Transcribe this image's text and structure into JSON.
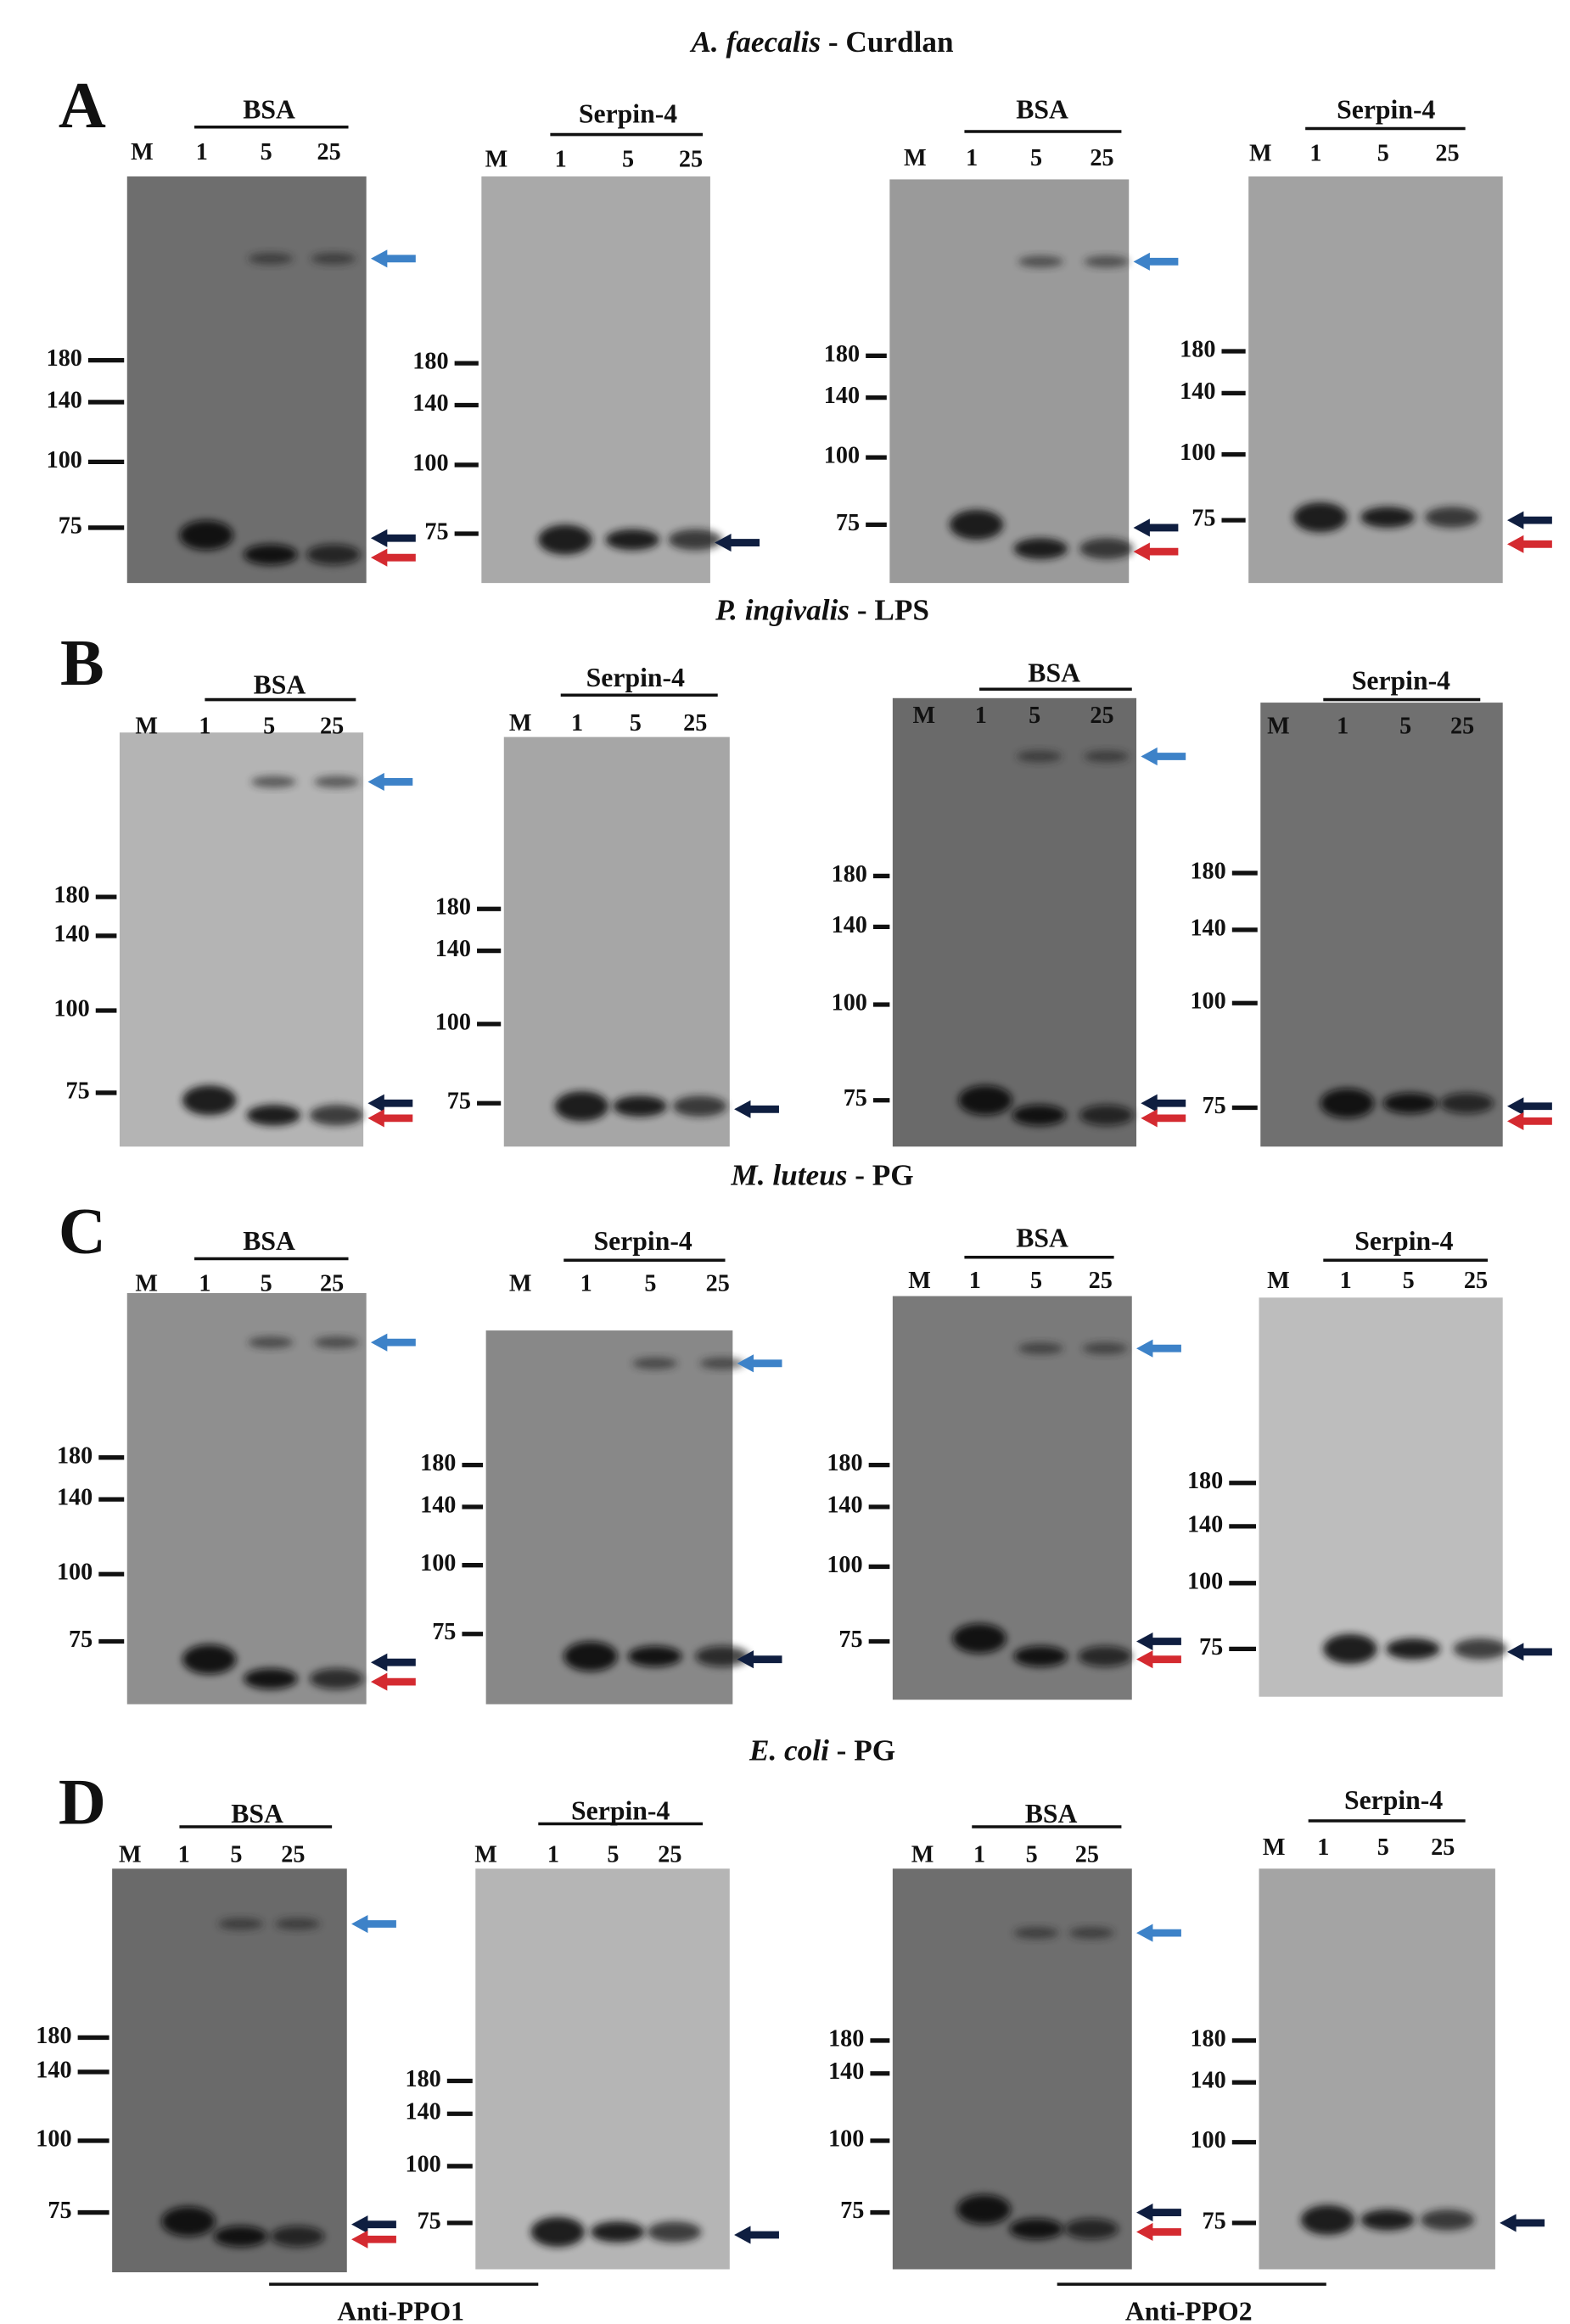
{
  "panels": [
    {
      "letter": "A",
      "organism": "A. faecalis",
      "substrate": "- Curdlan",
      "blots": [
        {
          "header": "BSA",
          "lanes": [
            "M",
            "1",
            "5",
            "25"
          ],
          "markers": [
            180,
            140,
            100,
            75
          ]
        },
        {
          "header": "Serpin-4",
          "lanes": [
            "M",
            "1",
            "5",
            "25"
          ],
          "markers": [
            180,
            140,
            100,
            75
          ]
        },
        {
          "header": "BSA",
          "lanes": [
            "M",
            "1",
            "5",
            "25"
          ],
          "markers": [
            180,
            140,
            100,
            75
          ]
        },
        {
          "header": "Serpin-4",
          "lanes": [
            "M",
            "1",
            "5",
            "25"
          ],
          "markers": [
            180,
            140,
            100,
            75
          ]
        }
      ]
    },
    {
      "letter": "B",
      "organism": "P. ingivalis",
      "substrate": "- LPS",
      "blots": [
        {
          "header": "BSA",
          "lanes": [
            "M",
            "1",
            "5",
            "25"
          ],
          "markers": [
            180,
            140,
            100,
            75
          ]
        },
        {
          "header": "Serpin-4",
          "lanes": [
            "M",
            "1",
            "5",
            "25"
          ],
          "markers": [
            180,
            140,
            100,
            75
          ]
        },
        {
          "header": "BSA",
          "lanes": [
            "M",
            "1",
            "5",
            "25"
          ],
          "markers": [
            180,
            140,
            100,
            75
          ]
        },
        {
          "header": "Serpin-4",
          "lanes": [
            "M",
            "1",
            "5",
            "25"
          ],
          "markers": [
            180,
            140,
            100,
            75
          ]
        }
      ]
    },
    {
      "letter": "C",
      "organism": "M. luteus",
      "substrate": "- PG",
      "blots": [
        {
          "header": "BSA",
          "lanes": [
            "M",
            "1",
            "5",
            "25"
          ],
          "markers": [
            180,
            140,
            100,
            75
          ]
        },
        {
          "header": "Serpin-4",
          "lanes": [
            "M",
            "1",
            "5",
            "25"
          ],
          "markers": [
            180,
            140,
            100,
            75
          ]
        },
        {
          "header": "BSA",
          "lanes": [
            "M",
            "1",
            "5",
            "25"
          ],
          "markers": [
            180,
            140,
            100,
            75
          ]
        },
        {
          "header": "Serpin-4",
          "lanes": [
            "M",
            "1",
            "5",
            "25"
          ],
          "markers": [
            180,
            140,
            100,
            75
          ]
        }
      ]
    },
    {
      "letter": "D",
      "organism": "E. coli",
      "substrate": "- PG",
      "blots": [
        {
          "header": "BSA",
          "lanes": [
            "M",
            "1",
            "5",
            "25"
          ],
          "markers": [
            180,
            140,
            100,
            75
          ]
        },
        {
          "header": "Serpin-4",
          "lanes": [
            "M",
            "1",
            "5",
            "25"
          ],
          "markers": [
            180,
            140,
            100,
            75
          ]
        },
        {
          "header": "BSA",
          "lanes": [
            "M",
            "1",
            "5",
            "25"
          ],
          "markers": [
            180,
            140,
            100,
            75
          ]
        },
        {
          "header": "Serpin-4",
          "lanes": [
            "M",
            "1",
            "5",
            "25"
          ],
          "markers": [
            180,
            140,
            100,
            75
          ]
        }
      ],
      "antibodies": [
        "Anti-PPO1",
        "Anti-PPO2"
      ]
    }
  ]
}
